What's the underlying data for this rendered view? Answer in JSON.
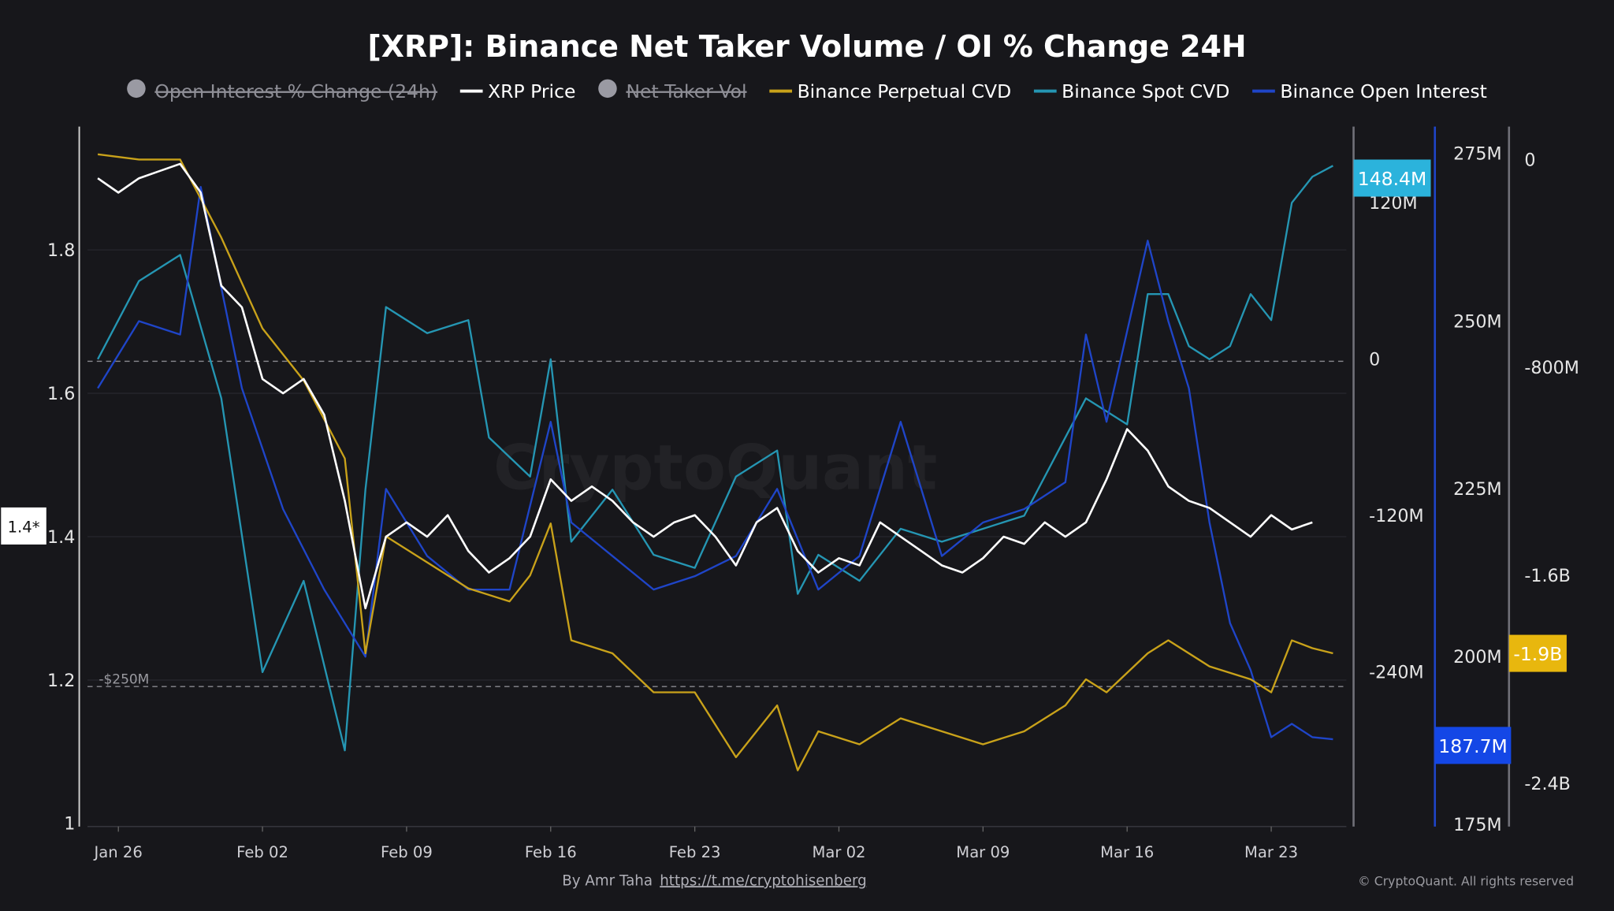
{
  "chart_data": {
    "type": "line",
    "title": "[XRP]: Binance Net Taker Volume / OI % Change 24H",
    "legend": [
      {
        "name": "Open Interest % Change (24h)",
        "hidden": true,
        "color": "#9a9aa3"
      },
      {
        "name": "XRP Price",
        "hidden": false,
        "color": "#ffffff"
      },
      {
        "name": "Net Taker Vol",
        "hidden": true,
        "color": "#9a9aa3"
      },
      {
        "name": "Binance Perpetual CVD",
        "hidden": false,
        "color": "#c9a21a"
      },
      {
        "name": "Binance Spot CVD",
        "hidden": false,
        "color": "#2596b3"
      },
      {
        "name": "Binance Open Interest",
        "hidden": false,
        "color": "#1f45c8"
      }
    ],
    "legend_placement": "top",
    "x_ticks": [
      "Jan 26",
      "Feb 02",
      "Feb 09",
      "Feb 16",
      "Feb 23",
      "Mar 02",
      "Mar 09",
      "Mar 16",
      "Mar 23"
    ],
    "axes": {
      "price": {
        "ticks": [
          "1",
          "1.2",
          "1.4",
          "1.6",
          "1.8"
        ],
        "range": [
          1,
          1.97
        ],
        "current": "1.4*"
      },
      "spot_cvd": {
        "ticks": [
          "120M",
          "0",
          "-120M",
          "-240M"
        ],
        "current": "148.4M",
        "current_color": "#2bb3dc"
      },
      "open_interest": {
        "ticks": [
          "275M",
          "250M",
          "225M",
          "200M",
          "175M"
        ],
        "range": [
          175,
          275
        ],
        "current": "187.7M",
        "current_color": "#1447e6"
      },
      "perp_cvd": {
        "ticks": [
          "0",
          "-800M",
          "-1.6B",
          "-2.4B"
        ],
        "current": "-1.9B",
        "current_color": "#e8b70e"
      }
    },
    "reference_lines": [
      {
        "label": "0"
      },
      {
        "label": "-$250M"
      }
    ],
    "series": [
      {
        "name": "XRP Price",
        "unit": "USD",
        "color": "#ffffff",
        "points": [
          [
            "Jan 25",
            1.9
          ],
          [
            "Jan 26",
            1.88
          ],
          [
            "Jan 27",
            1.9
          ],
          [
            "Jan 28",
            1.91
          ],
          [
            "Jan 29",
            1.92
          ],
          [
            "Jan 30",
            1.88
          ],
          [
            "Jan 31",
            1.75
          ],
          [
            "Feb 01",
            1.72
          ],
          [
            "Feb 02",
            1.62
          ],
          [
            "Feb 03",
            1.6
          ],
          [
            "Feb 04",
            1.62
          ],
          [
            "Feb 05",
            1.57
          ],
          [
            "Feb 06",
            1.45
          ],
          [
            "Feb 07",
            1.3
          ],
          [
            "Feb 08",
            1.4
          ],
          [
            "Feb 09",
            1.42
          ],
          [
            "Feb 10",
            1.4
          ],
          [
            "Feb 11",
            1.43
          ],
          [
            "Feb 12",
            1.38
          ],
          [
            "Feb 13",
            1.35
          ],
          [
            "Feb 14",
            1.37
          ],
          [
            "Feb 15",
            1.4
          ],
          [
            "Feb 16",
            1.48
          ],
          [
            "Feb 17",
            1.45
          ],
          [
            "Feb 18",
            1.47
          ],
          [
            "Feb 19",
            1.45
          ],
          [
            "Feb 20",
            1.42
          ],
          [
            "Feb 21",
            1.4
          ],
          [
            "Feb 22",
            1.42
          ],
          [
            "Feb 23",
            1.43
          ],
          [
            "Feb 24",
            1.4
          ],
          [
            "Feb 25",
            1.36
          ],
          [
            "Feb 26",
            1.42
          ],
          [
            "Feb 27",
            1.44
          ],
          [
            "Feb 28",
            1.38
          ],
          [
            "Mar 01",
            1.35
          ],
          [
            "Mar 02",
            1.37
          ],
          [
            "Mar 03",
            1.36
          ],
          [
            "Mar 04",
            1.42
          ],
          [
            "Mar 05",
            1.4
          ],
          [
            "Mar 06",
            1.38
          ],
          [
            "Mar 07",
            1.36
          ],
          [
            "Mar 08",
            1.35
          ],
          [
            "Mar 09",
            1.37
          ],
          [
            "Mar 10",
            1.4
          ],
          [
            "Mar 11",
            1.39
          ],
          [
            "Mar 12",
            1.42
          ],
          [
            "Mar 13",
            1.4
          ],
          [
            "Mar 14",
            1.42
          ],
          [
            "Mar 15",
            1.48
          ],
          [
            "Mar 16",
            1.55
          ],
          [
            "Mar 17",
            1.52
          ],
          [
            "Mar 18",
            1.47
          ],
          [
            "Mar 19",
            1.45
          ],
          [
            "Mar 20",
            1.44
          ],
          [
            "Mar 21",
            1.42
          ],
          [
            "Mar 22",
            1.4
          ],
          [
            "Mar 23",
            1.43
          ],
          [
            "Mar 24",
            1.41
          ],
          [
            "Mar 25",
            1.42
          ]
        ]
      },
      {
        "name": "Binance Spot CVD",
        "unit": "M",
        "color": "#2596b3",
        "points": [
          [
            "Jan 25",
            0
          ],
          [
            "Jan 27",
            60
          ],
          [
            "Jan 29",
            80
          ],
          [
            "Jan 31",
            -30
          ],
          [
            "Feb 02",
            -240
          ],
          [
            "Feb 04",
            -170
          ],
          [
            "Feb 06",
            -300
          ],
          [
            "Feb 07",
            -100
          ],
          [
            "Feb 08",
            40
          ],
          [
            "Feb 10",
            20
          ],
          [
            "Feb 12",
            30
          ],
          [
            "Feb 13",
            -60
          ],
          [
            "Feb 15",
            -90
          ],
          [
            "Feb 16",
            0
          ],
          [
            "Feb 17",
            -140
          ],
          [
            "Feb 19",
            -100
          ],
          [
            "Feb 21",
            -150
          ],
          [
            "Feb 23",
            -160
          ],
          [
            "Feb 25",
            -90
          ],
          [
            "Feb 27",
            -70
          ],
          [
            "Feb 28",
            -180
          ],
          [
            "Mar 01",
            -150
          ],
          [
            "Mar 03",
            -170
          ],
          [
            "Mar 05",
            -130
          ],
          [
            "Mar 07",
            -140
          ],
          [
            "Mar 09",
            -130
          ],
          [
            "Mar 11",
            -120
          ],
          [
            "Mar 13",
            -60
          ],
          [
            "Mar 14",
            -30
          ],
          [
            "Mar 16",
            -50
          ],
          [
            "Mar 17",
            50
          ],
          [
            "Mar 18",
            50
          ],
          [
            "Mar 19",
            10
          ],
          [
            "Mar 20",
            0
          ],
          [
            "Mar 21",
            10
          ],
          [
            "Mar 22",
            50
          ],
          [
            "Mar 23",
            30
          ],
          [
            "Mar 24",
            120
          ],
          [
            "Mar 25",
            140
          ],
          [
            "Mar 26",
            148.4
          ]
        ]
      },
      {
        "name": "Binance Open Interest",
        "unit": "M",
        "color": "#1f45c8",
        "points": [
          [
            "Jan 25",
            240
          ],
          [
            "Jan 27",
            250
          ],
          [
            "Jan 29",
            248
          ],
          [
            "Jan 30",
            270
          ],
          [
            "Feb 01",
            240
          ],
          [
            "Feb 03",
            222
          ],
          [
            "Feb 05",
            210
          ],
          [
            "Feb 07",
            200
          ],
          [
            "Feb 08",
            225
          ],
          [
            "Feb 10",
            215
          ],
          [
            "Feb 12",
            210
          ],
          [
            "Feb 14",
            210
          ],
          [
            "Feb 16",
            235
          ],
          [
            "Feb 17",
            220
          ],
          [
            "Feb 19",
            215
          ],
          [
            "Feb 21",
            210
          ],
          [
            "Feb 23",
            212
          ],
          [
            "Feb 25",
            215
          ],
          [
            "Feb 27",
            225
          ],
          [
            "Mar 01",
            210
          ],
          [
            "Mar 03",
            215
          ],
          [
            "Mar 05",
            235
          ],
          [
            "Mar 07",
            215
          ],
          [
            "Mar 09",
            220
          ],
          [
            "Mar 11",
            222
          ],
          [
            "Mar 13",
            226
          ],
          [
            "Mar 14",
            248
          ],
          [
            "Mar 15",
            235
          ],
          [
            "Mar 17",
            262
          ],
          [
            "Mar 18",
            250
          ],
          [
            "Mar 19",
            240
          ],
          [
            "Mar 20",
            220
          ],
          [
            "Mar 21",
            205
          ],
          [
            "Mar 22",
            198
          ],
          [
            "Mar 23",
            188
          ],
          [
            "Mar 24",
            190
          ],
          [
            "Mar 25",
            188
          ],
          [
            "Mar 26",
            187.7
          ]
        ]
      },
      {
        "name": "Binance Perpetual CVD",
        "unit": "B",
        "color": "#c9a21a",
        "points": [
          [
            "Jan 25",
            0.02
          ],
          [
            "Jan 27",
            0
          ],
          [
            "Jan 29",
            0
          ],
          [
            "Jan 31",
            -0.3
          ],
          [
            "Feb 02",
            -0.65
          ],
          [
            "Feb 04",
            -0.85
          ],
          [
            "Feb 06",
            -1.15
          ],
          [
            "Feb 07",
            -1.9
          ],
          [
            "Feb 08",
            -1.45
          ],
          [
            "Feb 10",
            -1.55
          ],
          [
            "Feb 12",
            -1.65
          ],
          [
            "Feb 14",
            -1.7
          ],
          [
            "Feb 15",
            -1.6
          ],
          [
            "Feb 16",
            -1.4
          ],
          [
            "Feb 17",
            -1.85
          ],
          [
            "Feb 19",
            -1.9
          ],
          [
            "Feb 21",
            -2.05
          ],
          [
            "Feb 23",
            -2.05
          ],
          [
            "Feb 25",
            -2.3
          ],
          [
            "Feb 27",
            -2.1
          ],
          [
            "Feb 28",
            -2.35
          ],
          [
            "Mar 01",
            -2.2
          ],
          [
            "Mar 03",
            -2.25
          ],
          [
            "Mar 05",
            -2.15
          ],
          [
            "Mar 07",
            -2.2
          ],
          [
            "Mar 09",
            -2.25
          ],
          [
            "Mar 11",
            -2.2
          ],
          [
            "Mar 13",
            -2.1
          ],
          [
            "Mar 14",
            -2.0
          ],
          [
            "Mar 15",
            -2.05
          ],
          [
            "Mar 17",
            -1.9
          ],
          [
            "Mar 18",
            -1.85
          ],
          [
            "Mar 20",
            -1.95
          ],
          [
            "Mar 22",
            -2.0
          ],
          [
            "Mar 23",
            -2.05
          ],
          [
            "Mar 24",
            -1.85
          ],
          [
            "Mar 25",
            -1.88
          ],
          [
            "Mar 26",
            -1.9
          ]
        ]
      }
    ],
    "grid": true
  },
  "footer": {
    "author": "By Amr Taha",
    "link": "https://t.me/cryptohisenberg",
    "copyright": "© CryptoQuant. All rights reserved"
  },
  "watermark": "CryptoQuant"
}
